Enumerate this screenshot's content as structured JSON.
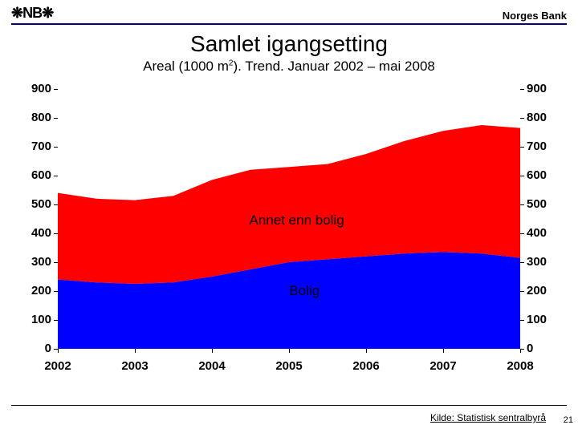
{
  "header": {
    "logo": "❋NB❋",
    "bank": "Norges Bank"
  },
  "title": "Samlet igangsetting",
  "subtitle_pre": "Areal (1000 m",
  "subtitle_sup": "2",
  "subtitle_post": "). Trend. Januar 2002 – mai 2008",
  "chart": {
    "type": "area",
    "ylim": [
      0,
      900
    ],
    "ytick_step": 100,
    "yticks": [
      900,
      800,
      700,
      600,
      500,
      400,
      300,
      200,
      100,
      0
    ],
    "xlim": [
      2002,
      2008
    ],
    "xticks": [
      2002,
      2003,
      2004,
      2005,
      2006,
      2007,
      2008
    ],
    "background_color": "#ffffff",
    "tick_color": "#000000",
    "tick_fontsize": 15,
    "tick_fontweight": "bold",
    "series": [
      {
        "name": "Bolig",
        "color": "#0000ff",
        "label_x": 2005.2,
        "label_y": 200,
        "x": [
          2002.0,
          2002.5,
          2003.0,
          2003.5,
          2004.0,
          2004.5,
          2005.0,
          2005.5,
          2006.0,
          2006.5,
          2007.0,
          2007.5,
          2008.0,
          2008.4
        ],
        "y": [
          240,
          230,
          225,
          230,
          250,
          275,
          300,
          310,
          320,
          330,
          335,
          330,
          315,
          300
        ]
      },
      {
        "name": "Annet enn bolig",
        "color": "#ff0000",
        "label_x": 2005.1,
        "label_y": 445,
        "x": [
          2002.0,
          2002.5,
          2003.0,
          2003.5,
          2004.0,
          2004.5,
          2005.0,
          2005.5,
          2006.0,
          2006.5,
          2007.0,
          2007.5,
          2008.0,
          2008.4
        ],
        "y": [
          300,
          290,
          290,
          300,
          335,
          345,
          330,
          330,
          355,
          390,
          420,
          445,
          450,
          435
        ]
      }
    ],
    "cliff_x": 2008.4,
    "label_fontsize": 17
  },
  "source": "Kilde: Statistisk sentralbyrå",
  "pagenum": "21"
}
